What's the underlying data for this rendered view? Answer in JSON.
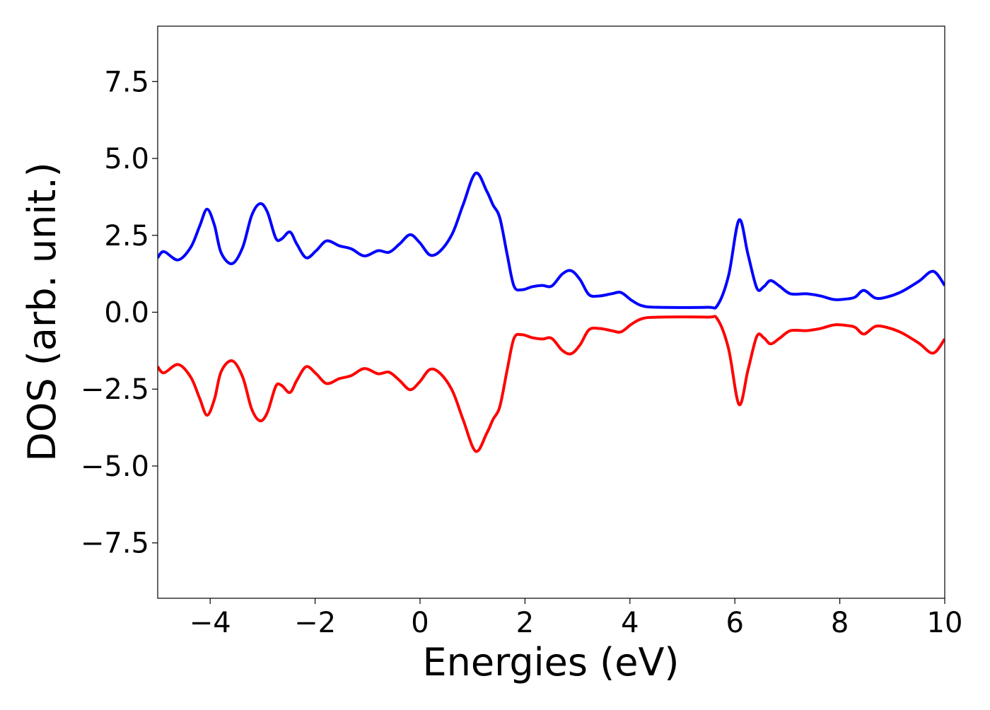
{
  "chart_data": {
    "type": "line",
    "x_label": "Energies (eV)",
    "y_label": "DOS (arb. unit.)",
    "xlim": [
      -5,
      10
    ],
    "ylim": [
      -9.3,
      9.3
    ],
    "xticks": [
      {
        "value": -4,
        "label": "−4"
      },
      {
        "value": -2,
        "label": "−2"
      },
      0,
      2,
      4,
      6,
      8,
      10
    ],
    "yticks": [
      {
        "value": -7.5,
        "label": "−7.5"
      },
      {
        "value": -5,
        "label": "−5.0"
      },
      {
        "value": -2.5,
        "label": "−2.5"
      },
      {
        "value": 0,
        "label": "0.0"
      },
      2.5,
      {
        "value": 5,
        "label": "5.0"
      },
      7.5
    ],
    "x": [
      -5,
      -4.88,
      -4.61,
      -4.37,
      -4.2,
      -4.06,
      -3.92,
      -3.79,
      -3.58,
      -3.38,
      -3.21,
      -3.05,
      -2.91,
      -2.75,
      -2.64,
      -2.48,
      -2.35,
      -2.17,
      -1.98,
      -1.78,
      -1.54,
      -1.31,
      -1.06,
      -0.8,
      -0.59,
      -0.39,
      -0.19,
      -0.01,
      0.19,
      0.39,
      0.62,
      0.82,
      1.06,
      1.27,
      1.39,
      1.52,
      1.66,
      1.79,
      1.94,
      2.14,
      2.33,
      2.51,
      2.71,
      2.88,
      3.05,
      3.22,
      3.42,
      3.65,
      3.83,
      4.03,
      4.23,
      4.53,
      5.47,
      5.67,
      5.88,
      6.08,
      6.25,
      6.42,
      6.55,
      6.68,
      6.85,
      7.06,
      7.36,
      7.63,
      7.9,
      8.17,
      8.3,
      8.46,
      8.68,
      8.91,
      9.18,
      9.51,
      9.78,
      10
    ],
    "series": [
      {
        "color": "#0000ff",
        "values": [
          1.77,
          1.97,
          1.7,
          2.11,
          2.8,
          3.35,
          2.84,
          1.93,
          1.58,
          2.11,
          3.14,
          3.53,
          3.26,
          2.41,
          2.38,
          2.61,
          2.22,
          1.77,
          2.0,
          2.32,
          2.16,
          2.06,
          1.83,
          2.0,
          1.95,
          2.22,
          2.52,
          2.27,
          1.86,
          2.0,
          2.57,
          3.49,
          4.52,
          3.94,
          3.49,
          3.07,
          1.88,
          0.85,
          0.73,
          0.83,
          0.87,
          0.85,
          1.24,
          1.35,
          1.06,
          0.57,
          0.53,
          0.6,
          0.64,
          0.39,
          0.21,
          0.16,
          0.16,
          0.23,
          1.19,
          3.0,
          1.88,
          0.78,
          0.83,
          1.03,
          0.85,
          0.6,
          0.6,
          0.53,
          0.41,
          0.44,
          0.5,
          0.71,
          0.46,
          0.5,
          0.67,
          1.01,
          1.33,
          0.87
        ]
      },
      {
        "color": "#ff0000",
        "values": [
          -1.77,
          -1.97,
          -1.7,
          -2.11,
          -2.8,
          -3.35,
          -2.84,
          -1.93,
          -1.58,
          -2.11,
          -3.14,
          -3.53,
          -3.26,
          -2.41,
          -2.38,
          -2.61,
          -2.22,
          -1.77,
          -2.0,
          -2.32,
          -2.16,
          -2.06,
          -1.83,
          -2.0,
          -1.95,
          -2.22,
          -2.52,
          -2.27,
          -1.86,
          -2.0,
          -2.57,
          -3.49,
          -4.52,
          -3.94,
          -3.49,
          -3.07,
          -1.88,
          -0.85,
          -0.73,
          -0.83,
          -0.87,
          -0.85,
          -1.24,
          -1.35,
          -1.06,
          -0.57,
          -0.53,
          -0.6,
          -0.64,
          -0.39,
          -0.21,
          -0.16,
          -0.16,
          -0.23,
          -1.19,
          -3.0,
          -1.88,
          -0.78,
          -0.83,
          -1.03,
          -0.85,
          -0.6,
          -0.6,
          -0.53,
          -0.41,
          -0.44,
          -0.5,
          -0.71,
          -0.46,
          -0.5,
          -0.67,
          -1.01,
          -1.33,
          -0.87
        ]
      }
    ]
  }
}
